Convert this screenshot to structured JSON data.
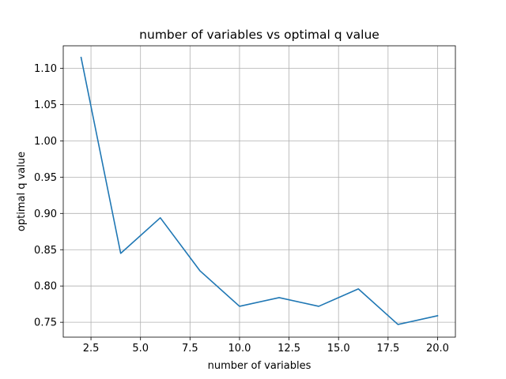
{
  "chart_data": {
    "type": "line",
    "title": "number of variables vs optimal q value",
    "xlabel": "number of variables",
    "ylabel": "optimal q value",
    "xlim": [
      1.1,
      20.9
    ],
    "ylim": [
      0.7295,
      1.131
    ],
    "xticks": [
      2.5,
      5.0,
      7.5,
      10.0,
      12.5,
      15.0,
      17.5,
      20.0
    ],
    "xtick_labels": [
      "2.5",
      "5.0",
      "7.5",
      "10.0",
      "12.5",
      "15.0",
      "17.5",
      "20.0"
    ],
    "yticks": [
      0.75,
      0.8,
      0.85,
      0.9,
      0.95,
      1.0,
      1.05,
      1.1
    ],
    "ytick_labels": [
      "0.75",
      "0.80",
      "0.85",
      "0.90",
      "0.95",
      "1.00",
      "1.05",
      "1.10"
    ],
    "grid": true,
    "series": [
      {
        "color": "#1f77b4",
        "x": [
          2,
          4,
          6,
          8,
          10,
          12,
          14,
          16,
          18,
          20
        ],
        "y": [
          1.115,
          0.845,
          0.894,
          0.821,
          0.772,
          0.784,
          0.772,
          0.796,
          0.747,
          0.759
        ]
      }
    ]
  }
}
